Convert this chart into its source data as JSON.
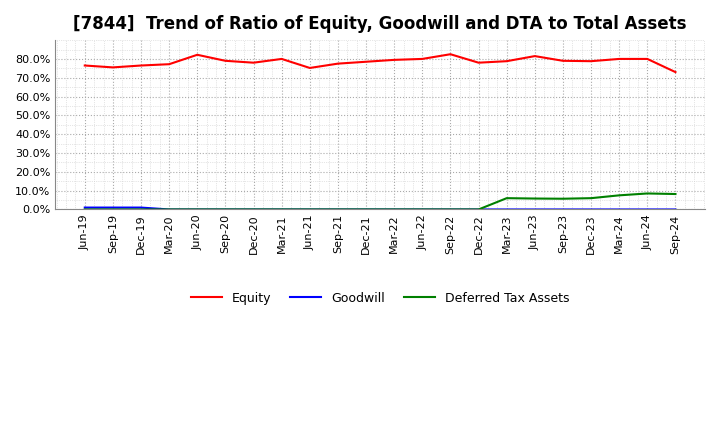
{
  "title": "[7844]  Trend of Ratio of Equity, Goodwill and DTA to Total Assets",
  "x_labels": [
    "Jun-19",
    "Sep-19",
    "Dec-19",
    "Mar-20",
    "Jun-20",
    "Sep-20",
    "Dec-20",
    "Mar-21",
    "Jun-21",
    "Sep-21",
    "Dec-21",
    "Mar-22",
    "Jun-22",
    "Sep-22",
    "Dec-22",
    "Mar-23",
    "Jun-23",
    "Sep-23",
    "Dec-23",
    "Mar-24",
    "Jun-24",
    "Sep-24"
  ],
  "equity": [
    0.765,
    0.755,
    0.765,
    0.772,
    0.822,
    0.79,
    0.78,
    0.8,
    0.752,
    0.775,
    0.785,
    0.795,
    0.8,
    0.825,
    0.78,
    0.788,
    0.815,
    0.79,
    0.788,
    0.8,
    0.8,
    0.73
  ],
  "goodwill": [
    0.01,
    0.01,
    0.01,
    0.0,
    0.0,
    0.0,
    0.0,
    0.0,
    0.0,
    0.0,
    0.0,
    0.0,
    0.0,
    0.0,
    0.0,
    0.0,
    0.0,
    0.0,
    0.0,
    0.0,
    0.0,
    0.0
  ],
  "dta": [
    0.0,
    0.0,
    0.0,
    0.0,
    0.0,
    0.0,
    0.0,
    0.0,
    0.0,
    0.0,
    0.0,
    0.0,
    0.0,
    0.0,
    0.0,
    0.06,
    0.058,
    0.057,
    0.06,
    0.075,
    0.085,
    0.082
  ],
  "equity_color": "#FF0000",
  "goodwill_color": "#0000FF",
  "dta_color": "#008000",
  "ylim_min": 0.0,
  "ylim_max": 0.9,
  "yticks": [
    0.0,
    0.1,
    0.2,
    0.3,
    0.4,
    0.5,
    0.6,
    0.7,
    0.8
  ],
  "background_color": "#FFFFFF",
  "plot_bg_color": "#FFFFFF",
  "major_grid_color": "#AAAAAA",
  "minor_grid_color": "#CCCCCC",
  "title_fontsize": 12,
  "legend_labels": [
    "Equity",
    "Goodwill",
    "Deferred Tax Assets"
  ],
  "line_width": 1.5,
  "tick_fontsize": 8,
  "legend_fontsize": 9
}
